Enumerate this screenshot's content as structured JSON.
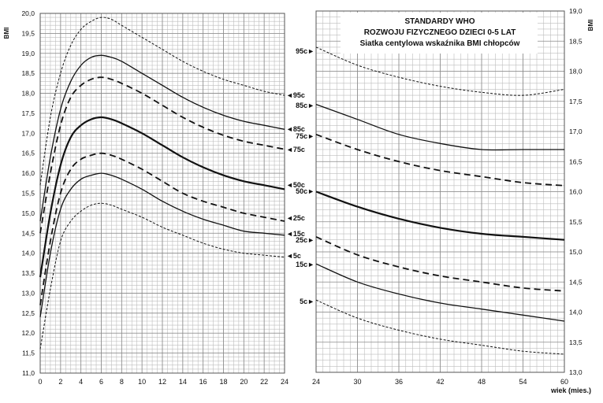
{
  "chart_data": {
    "type": "line",
    "title_lines": [
      "STANDARDY WHO",
      "ROZWOJU FIZYCZNEGO DZIECI 0-5 LAT",
      "Siatka centylowa wskaźnika BMI chłopców"
    ],
    "ylabel": "BMI",
    "xlabel": "wiek (mies.)",
    "panels": [
      {
        "name": "left",
        "xlim": [
          0,
          24
        ],
        "ylim": [
          11.0,
          20.0
        ],
        "xticks": [
          0,
          2,
          4,
          6,
          8,
          10,
          12,
          14,
          16,
          18,
          20,
          22,
          24
        ],
        "yticks": [
          11.0,
          11.5,
          12.0,
          12.5,
          13.0,
          13.5,
          14.0,
          14.5,
          15.0,
          15.5,
          16.0,
          16.5,
          17.0,
          17.5,
          18.0,
          18.5,
          19.0,
          19.5,
          20.0
        ],
        "ytick_labels": [
          "11,0",
          "11,5",
          "12,0",
          "12,5",
          "13,0",
          "13,5",
          "14,0",
          "14,5",
          "15,0",
          "15,5",
          "16,0",
          "16,5",
          "17,0",
          "17,5",
          "18,0",
          "18,5",
          "19,0",
          "19,5",
          "20,0"
        ]
      },
      {
        "name": "right",
        "xlim": [
          24,
          60
        ],
        "ylim": [
          13.0,
          19.0
        ],
        "xticks": [
          24,
          30,
          36,
          42,
          48,
          54,
          60
        ],
        "yticks": [
          13.0,
          13.5,
          14.0,
          14.5,
          15.0,
          15.5,
          16.0,
          16.5,
          17.0,
          17.5,
          18.0,
          18.5,
          19.0
        ],
        "ytick_labels": [
          "13,0",
          "13,5",
          "14,0",
          "14,5",
          "15,0",
          "15,5",
          "16,0",
          "16,5",
          "17,0",
          "17,5",
          "18,0",
          "18,5",
          "19,0"
        ]
      }
    ],
    "series": [
      {
        "name": "95c",
        "style": "short-dash",
        "left": {
          "x": [
            0,
            1,
            2,
            3,
            4,
            5,
            6,
            7,
            8,
            10,
            12,
            14,
            16,
            18,
            20,
            22,
            24
          ],
          "y": [
            15.7,
            17.4,
            18.5,
            19.2,
            19.6,
            19.8,
            19.9,
            19.85,
            19.7,
            19.4,
            19.1,
            18.8,
            18.55,
            18.35,
            18.2,
            18.05,
            17.95
          ]
        },
        "right": {
          "x": [
            24,
            30,
            36,
            42,
            48,
            54,
            60
          ],
          "y": [
            18.4,
            18.1,
            17.9,
            17.75,
            17.65,
            17.6,
            17.7
          ]
        }
      },
      {
        "name": "85c",
        "style": "solid",
        "left": {
          "x": [
            0,
            1,
            2,
            3,
            4,
            5,
            6,
            7,
            8,
            10,
            12,
            14,
            16,
            18,
            20,
            22,
            24
          ],
          "y": [
            14.8,
            16.4,
            17.6,
            18.3,
            18.7,
            18.9,
            18.95,
            18.9,
            18.8,
            18.5,
            18.2,
            17.9,
            17.65,
            17.45,
            17.3,
            17.2,
            17.1
          ]
        },
        "right": {
          "x": [
            24,
            30,
            36,
            42,
            48,
            54,
            60
          ],
          "y": [
            17.45,
            17.2,
            16.95,
            16.8,
            16.7,
            16.7,
            16.7
          ]
        }
      },
      {
        "name": "75c",
        "style": "long-dash",
        "left": {
          "x": [
            0,
            1,
            2,
            3,
            4,
            5,
            6,
            7,
            8,
            10,
            12,
            14,
            16,
            18,
            20,
            22,
            24
          ],
          "y": [
            14.5,
            16.0,
            17.2,
            17.9,
            18.2,
            18.35,
            18.4,
            18.35,
            18.25,
            18.0,
            17.7,
            17.4,
            17.15,
            16.95,
            16.8,
            16.7,
            16.6
          ]
        },
        "right": {
          "x": [
            24,
            30,
            36,
            42,
            48,
            54,
            60
          ],
          "y": [
            16.95,
            16.7,
            16.5,
            16.35,
            16.25,
            16.15,
            16.1
          ]
        }
      },
      {
        "name": "50c",
        "style": "thick",
        "left": {
          "x": [
            0,
            1,
            2,
            3,
            4,
            5,
            6,
            7,
            8,
            10,
            12,
            14,
            16,
            18,
            20,
            22,
            24
          ],
          "y": [
            13.4,
            15.0,
            16.2,
            16.9,
            17.2,
            17.35,
            17.4,
            17.35,
            17.25,
            17.0,
            16.7,
            16.4,
            16.15,
            15.95,
            15.8,
            15.7,
            15.6
          ]
        },
        "right": {
          "x": [
            24,
            30,
            36,
            42,
            48,
            54,
            60
          ],
          "y": [
            16.0,
            15.75,
            15.55,
            15.4,
            15.3,
            15.25,
            15.2
          ]
        }
      },
      {
        "name": "25c",
        "style": "long-dash",
        "left": {
          "x": [
            0,
            1,
            2,
            3,
            4,
            5,
            6,
            7,
            8,
            10,
            12,
            14,
            16,
            18,
            20,
            22,
            24
          ],
          "y": [
            12.7,
            14.3,
            15.5,
            16.1,
            16.35,
            16.45,
            16.5,
            16.45,
            16.35,
            16.1,
            15.8,
            15.5,
            15.3,
            15.15,
            15.0,
            14.9,
            14.8
          ]
        },
        "right": {
          "x": [
            24,
            30,
            36,
            42,
            48,
            54,
            60
          ],
          "y": [
            15.25,
            14.95,
            14.75,
            14.6,
            14.5,
            14.4,
            14.35
          ]
        }
      },
      {
        "name": "15c",
        "style": "solid",
        "left": {
          "x": [
            0,
            1,
            2,
            3,
            4,
            5,
            6,
            7,
            8,
            10,
            12,
            14,
            16,
            18,
            20,
            22,
            24
          ],
          "y": [
            12.4,
            14.0,
            15.1,
            15.6,
            15.85,
            15.95,
            16.0,
            15.95,
            15.85,
            15.6,
            15.3,
            15.05,
            14.85,
            14.7,
            14.55,
            14.5,
            14.45
          ]
        },
        "right": {
          "x": [
            24,
            30,
            36,
            42,
            48,
            54,
            60
          ],
          "y": [
            14.8,
            14.5,
            14.3,
            14.15,
            14.05,
            13.95,
            13.85
          ]
        }
      },
      {
        "name": "5c",
        "style": "short-dash",
        "left": {
          "x": [
            0,
            1,
            2,
            3,
            4,
            5,
            6,
            7,
            8,
            10,
            12,
            14,
            16,
            18,
            20,
            22,
            24
          ],
          "y": [
            11.6,
            13.1,
            14.3,
            14.8,
            15.05,
            15.2,
            15.25,
            15.2,
            15.1,
            14.9,
            14.65,
            14.45,
            14.25,
            14.1,
            14.0,
            13.95,
            13.9
          ]
        },
        "right": {
          "x": [
            24,
            30,
            36,
            42,
            48,
            54,
            60
          ],
          "y": [
            14.2,
            13.9,
            13.7,
            13.55,
            13.45,
            13.35,
            13.3
          ]
        }
      }
    ],
    "left_end_labels": [
      {
        "series": "95c",
        "label": "◄95c"
      },
      {
        "series": "85c",
        "label": "◄85c"
      },
      {
        "series": "75c",
        "label": "◄75c"
      },
      {
        "series": "50c",
        "label": "◄50c"
      },
      {
        "series": "25c",
        "label": "◄25c"
      },
      {
        "series": "15c",
        "label": "◄15c"
      },
      {
        "series": "5c",
        "label": "◄5c"
      }
    ],
    "right_start_labels": [
      {
        "series": "95c",
        "label": "95c►"
      },
      {
        "series": "85c",
        "label": "85c►"
      },
      {
        "series": "75c",
        "label": "75c►"
      },
      {
        "series": "50c",
        "label": "50c►"
      },
      {
        "series": "25c",
        "label": "25c►"
      },
      {
        "series": "15c",
        "label": "15c►"
      },
      {
        "series": "5c",
        "label": "5c►"
      }
    ]
  }
}
